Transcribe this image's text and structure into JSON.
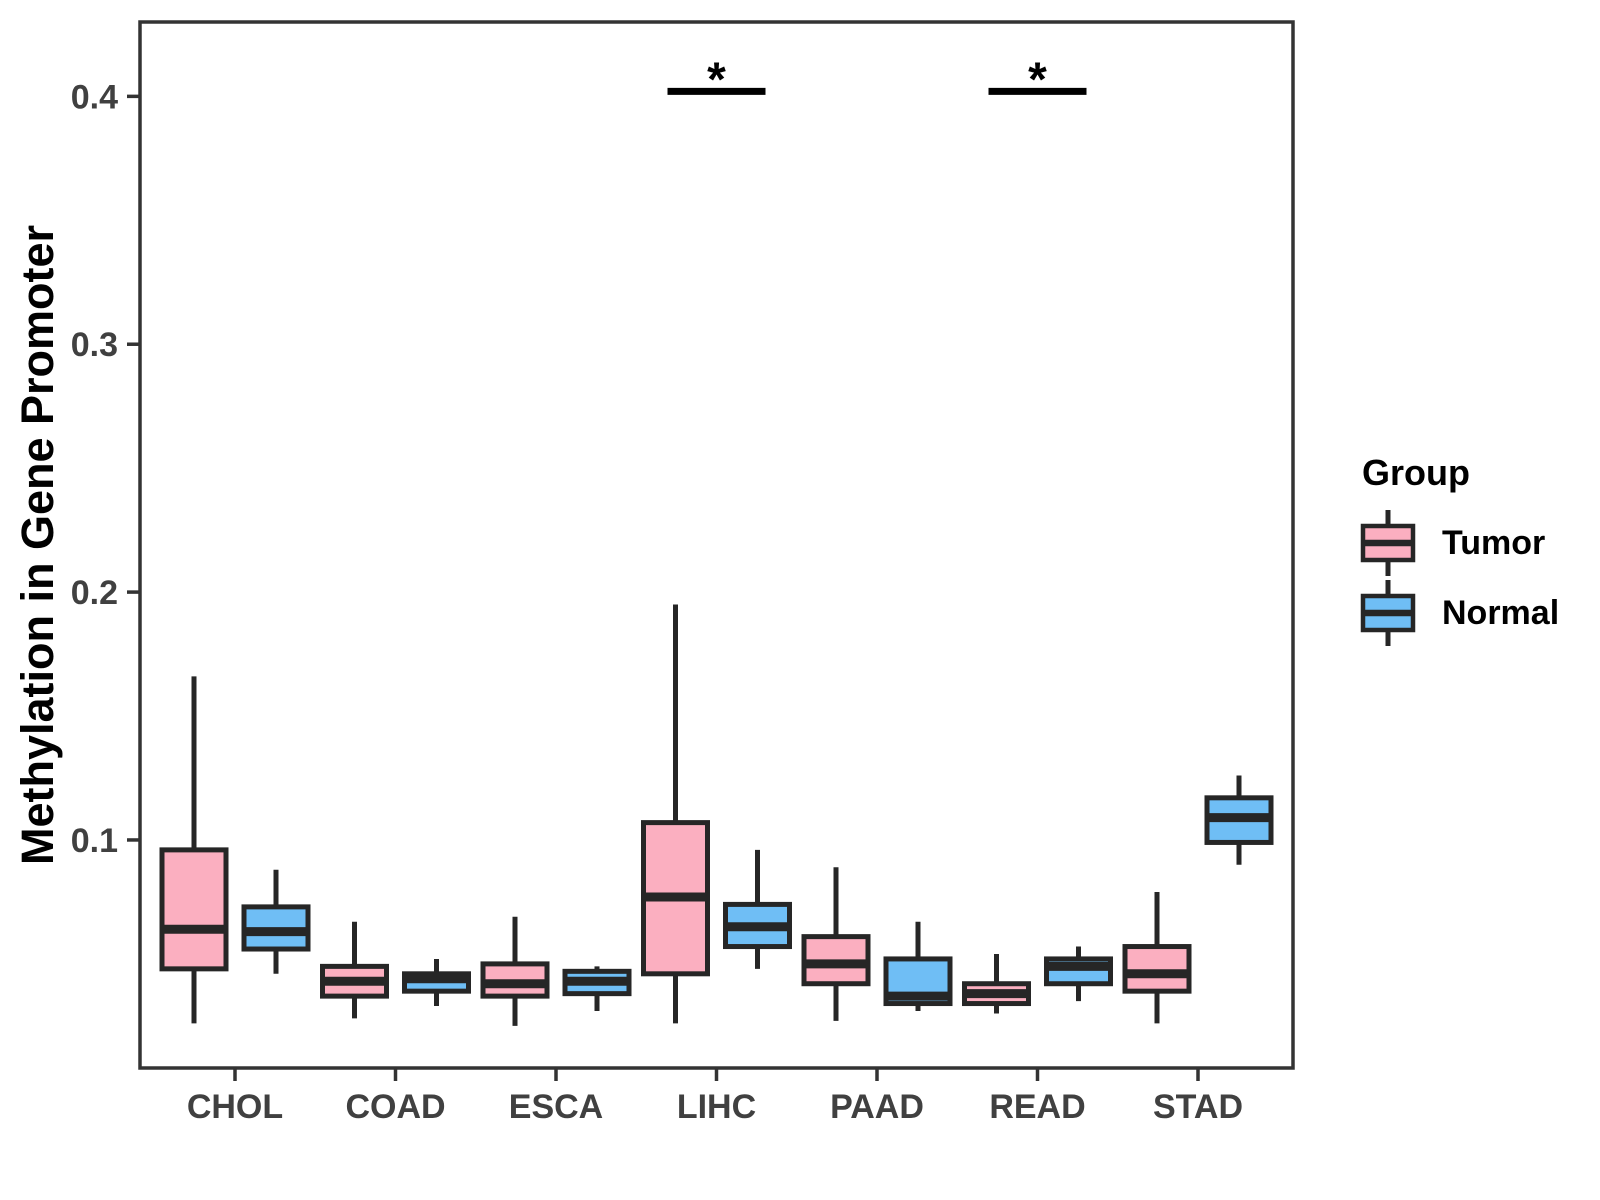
{
  "chart_data": {
    "type": "boxplot",
    "title": "",
    "xlabel": "",
    "ylabel": "Methylation in Gene Promoter",
    "categories": [
      "CHOL",
      "COAD",
      "ESCA",
      "LIHC",
      "PAAD",
      "READ",
      "STAD"
    ],
    "yticks": [
      0.1,
      0.2,
      0.3,
      0.4
    ],
    "ylim": [
      0.008,
      0.43
    ],
    "grid": false,
    "legend_position": "right",
    "series": [
      {
        "name": "Tumor",
        "color": "#FBAFC0",
        "boxes": [
          {
            "category": "CHOL",
            "whisker_low": 0.026,
            "q1": 0.048,
            "median": 0.064,
            "q3": 0.096,
            "whisker_high": 0.166
          },
          {
            "category": "COAD",
            "whisker_low": 0.028,
            "q1": 0.037,
            "median": 0.043,
            "q3": 0.049,
            "whisker_high": 0.067
          },
          {
            "category": "ESCA",
            "whisker_low": 0.025,
            "q1": 0.037,
            "median": 0.042,
            "q3": 0.05,
            "whisker_high": 0.069
          },
          {
            "category": "LIHC",
            "whisker_low": 0.026,
            "q1": 0.046,
            "median": 0.077,
            "q3": 0.107,
            "whisker_high": 0.195
          },
          {
            "category": "PAAD",
            "whisker_low": 0.027,
            "q1": 0.042,
            "median": 0.05,
            "q3": 0.061,
            "whisker_high": 0.089
          },
          {
            "category": "READ",
            "whisker_low": 0.03,
            "q1": 0.034,
            "median": 0.038,
            "q3": 0.042,
            "whisker_high": 0.054
          },
          {
            "category": "STAD",
            "whisker_low": 0.026,
            "q1": 0.039,
            "median": 0.046,
            "q3": 0.057,
            "whisker_high": 0.079
          }
        ]
      },
      {
        "name": "Normal",
        "color": "#6FBEF5",
        "boxes": [
          {
            "category": "CHOL",
            "whisker_low": 0.046,
            "q1": 0.056,
            "median": 0.063,
            "q3": 0.073,
            "whisker_high": 0.088
          },
          {
            "category": "COAD",
            "whisker_low": 0.033,
            "q1": 0.039,
            "median": 0.044,
            "q3": 0.046,
            "whisker_high": 0.052
          },
          {
            "category": "ESCA",
            "whisker_low": 0.031,
            "q1": 0.038,
            "median": 0.043,
            "q3": 0.047,
            "whisker_high": 0.049
          },
          {
            "category": "LIHC",
            "whisker_low": 0.048,
            "q1": 0.057,
            "median": 0.065,
            "q3": 0.074,
            "whisker_high": 0.096
          },
          {
            "category": "PAAD",
            "whisker_low": 0.031,
            "q1": 0.034,
            "median": 0.037,
            "q3": 0.052,
            "whisker_high": 0.067
          },
          {
            "category": "READ",
            "whisker_low": 0.035,
            "q1": 0.042,
            "median": 0.049,
            "q3": 0.052,
            "whisker_high": 0.057
          },
          {
            "category": "STAD",
            "whisker_low": 0.09,
            "q1": 0.099,
            "median": 0.109,
            "q3": 0.117,
            "whisker_high": 0.126
          }
        ]
      }
    ],
    "annotations": [
      {
        "category": "LIHC",
        "label": "*",
        "y": 0.402
      },
      {
        "category": "READ",
        "label": "*",
        "y": 0.402
      }
    ]
  },
  "legend": {
    "title": "Group",
    "items": [
      {
        "label": "Tumor",
        "color": "#FBAFC0"
      },
      {
        "label": "Normal",
        "color": "#6FBEF5"
      }
    ]
  },
  "style": {
    "box_stroke": "#262626",
    "axis_color": "#333333",
    "tick_label_color": "#404040",
    "annotation_color": "#000000"
  }
}
